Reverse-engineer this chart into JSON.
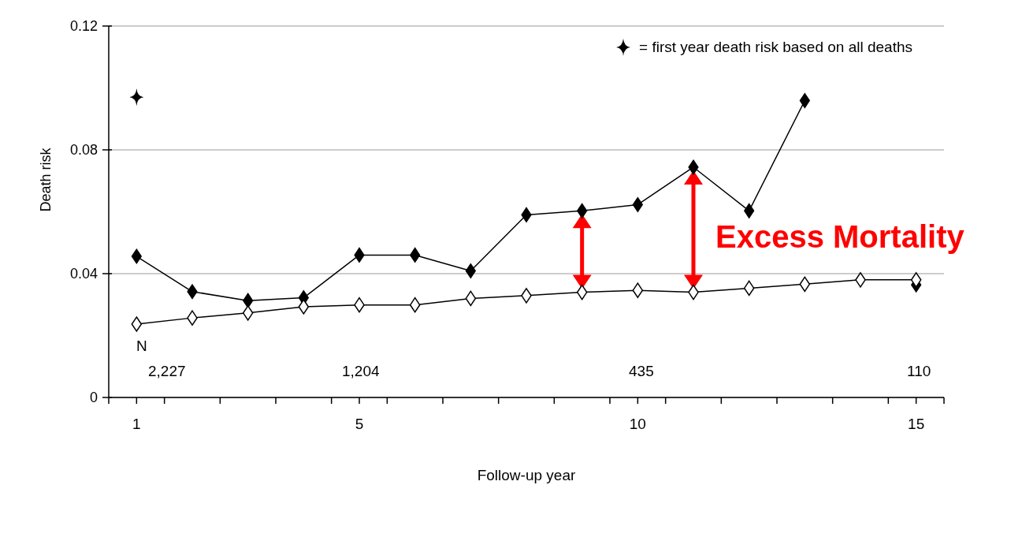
{
  "chart_data": {
    "type": "line",
    "xlabel": "Follow-up year",
    "ylabel": "Death risk",
    "x": [
      1,
      2,
      3,
      4,
      5,
      6,
      7,
      8,
      9,
      10,
      11,
      12,
      13,
      14,
      15
    ],
    "series": [
      {
        "color": "#000000",
        "marker": "diamond",
        "values": [
          0.0456,
          0.0342,
          0.0313,
          0.0322,
          0.046,
          0.046,
          0.0409,
          0.059,
          0.0603,
          0.0623,
          0.0744,
          0.0603,
          0.0959,
          null,
          0.0364
        ]
      },
      {
        "color": "#000000",
        "marker": "diamond-open",
        "values": [
          0.0237,
          0.0257,
          0.0273,
          0.0293,
          0.0299,
          0.0299,
          0.032,
          0.0329,
          0.034,
          0.0346,
          0.034,
          0.0353,
          0.0366,
          0.038,
          0.038
        ]
      },
      {
        "type": "scatter",
        "name": "= first year death risk based on all deaths",
        "color": "#000000",
        "marker": "cross",
        "x": [
          1
        ],
        "values": [
          0.097
        ]
      }
    ],
    "xlim": [
      0.5,
      15.5
    ],
    "xticks": [
      {
        "value": 0.5,
        "label": null
      },
      1,
      {
        "value": 1.5,
        "label": null
      },
      {
        "value": 2.5,
        "label": null
      },
      {
        "value": 3.5,
        "label": null
      },
      {
        "value": 4.5,
        "label": null
      },
      5,
      {
        "value": 5.5,
        "label": null
      },
      {
        "value": 6.5,
        "label": null
      },
      {
        "value": 7.5,
        "label": null
      },
      {
        "value": 8.5,
        "label": null
      },
      {
        "value": 9.5,
        "label": null
      },
      10,
      {
        "value": 10.5,
        "label": null
      },
      {
        "value": 11.5,
        "label": null
      },
      {
        "value": 12.5,
        "label": null
      },
      {
        "value": 13.5,
        "label": null
      },
      {
        "value": 14.5,
        "label": null
      },
      15,
      {
        "value": 15.5,
        "label": null
      }
    ],
    "ylim": [
      0,
      0.12
    ],
    "yticks": [
      0,
      0.04,
      0.08,
      0.12
    ],
    "grid": "y",
    "legend": "top right",
    "annotations": [
      "N",
      "2,227",
      "1,204",
      "435",
      "110",
      "Excess Mortality"
    ]
  }
}
